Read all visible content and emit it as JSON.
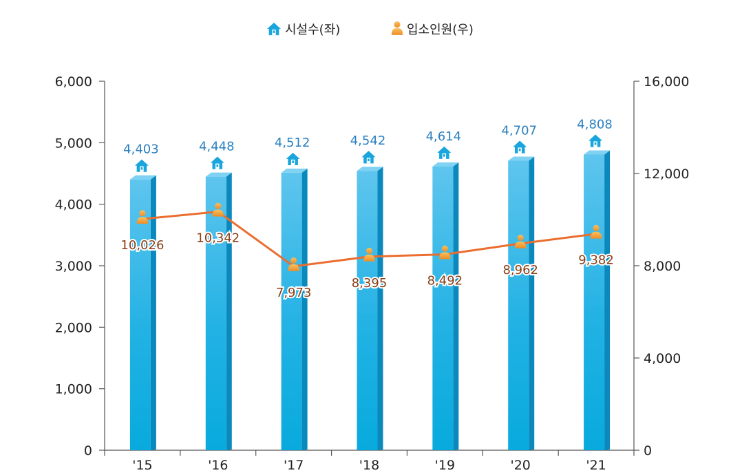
{
  "chart_data": {
    "type": "bar",
    "categories": [
      "'15",
      "'16",
      "'17",
      "'18",
      "'19",
      "'20",
      "'21"
    ],
    "series": [
      {
        "name": "시설수(좌)",
        "type": "bar",
        "axis": "left",
        "values": [
          4403,
          4448,
          4512,
          4542,
          4614,
          4707,
          4808
        ],
        "labels": [
          "4,403",
          "4,448",
          "4,512",
          "4,542",
          "4,614",
          "4,707",
          "4,808"
        ]
      },
      {
        "name": "입소인원(우)",
        "type": "line",
        "axis": "right",
        "values": [
          10026,
          10342,
          7973,
          8395,
          8492,
          8962,
          9382
        ],
        "labels": [
          "10,026",
          "10,342",
          "7,973",
          "8,395",
          "8,492",
          "8,962",
          "9,382"
        ]
      }
    ],
    "y_left": {
      "min": 0,
      "max": 6000,
      "ticks": [
        "0",
        "1,000",
        "2,000",
        "3,000",
        "4,000",
        "5,000",
        "6,000"
      ]
    },
    "y_right": {
      "min": 0,
      "max": 16000,
      "ticks": [
        "0",
        "4,000",
        "8,000",
        "12,000",
        "16,000"
      ]
    },
    "legend_position": "top-center",
    "grid": false,
    "colors": {
      "bar": "#19b3e2",
      "bar_label": "#2a7fc0",
      "line": "#ea6e2f",
      "line_label": "#8a3d14",
      "marker": "#f4a236"
    },
    "icons": {
      "bar": "house-icon",
      "line": "person-icon"
    }
  }
}
